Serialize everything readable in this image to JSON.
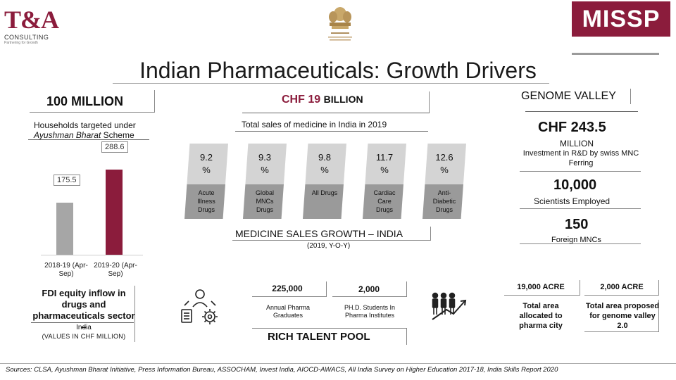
{
  "logos": {
    "ta_main": "T&A",
    "ta_sub": "CONSULTING",
    "ta_tag": "Partnering for Growth",
    "missp": "MISSP"
  },
  "title": "Indian Pharmaceuticals: Growth Drivers",
  "households": {
    "headline": "100 MILLION",
    "sub_line1": "Households targeted under",
    "sub_italic": "Ayushman Bharat",
    "sub_rest": " Scheme"
  },
  "sales": {
    "headline_main": "CHF 19 ",
    "headline_small": "BILLION",
    "sub": "Total sales of medicine in India in 2019"
  },
  "chart_data": {
    "type": "bar",
    "categories": [
      "2018-19 (Apr-Sep)",
      "2019-20 (Apr-Sep)"
    ],
    "values": [
      175.5,
      288.6
    ],
    "value_labels": [
      "175.5",
      "288.6"
    ],
    "colors": [
      "#a6a6a6",
      "#8b1c3c"
    ],
    "ylim": [
      0,
      310
    ]
  },
  "growth": {
    "columns": [
      {
        "value": "9.2",
        "unit": "%",
        "label": "Acute Illness Drugs"
      },
      {
        "value": "9.3",
        "unit": "%",
        "label": "Global MNCs Drugs"
      },
      {
        "value": "9.8",
        "unit": "%",
        "label": "All Drugs"
      },
      {
        "value": "11.7",
        "unit": "%",
        "label": "Cardiac Care Drugs"
      },
      {
        "value": "12.6",
        "unit": "%",
        "label": "Anti-Diabetic Drugs"
      }
    ],
    "title": "MEDICINE SALES GROWTH – INDIA",
    "subtitle": "(2019, Y-O-Y)"
  },
  "genome": {
    "title": "GENOME VALLEY",
    "chf": "CHF 243.5",
    "million": "MILLION",
    "investment": "Investment in R&D by swiss MNC Ferring",
    "scientists_num": "10,000",
    "scientists_label": "Scientists Employed",
    "mncs_num": "150",
    "mncs_label": "Foreign MNCs"
  },
  "fdi": {
    "title": "FDI equity inflow in drugs and pharmaceuticals sector –",
    "sub1": "India",
    "sub2": "(VALUES IN CHF MILLION)"
  },
  "talent": {
    "grads_num": "225,000",
    "grads_label": "Annual Pharma Graduates",
    "phd_num": "2,000",
    "phd_label": "PH.D. Students In Pharma Institutes",
    "title": "RICH TALENT POOL"
  },
  "acres": {
    "a_num": "19,000 ACRE",
    "a_label": "Total area allocated to pharma city",
    "b_num": "2,000 ACRE",
    "b_label": "Total area proposed for genome valley 2.0"
  },
  "sources": "Sources: CLSA, Ayushman Bharat Initiative, Press Information Bureau, ASSOCHAM, Invest India, AIOCD-AWACS, All India Survey on Higher Education 2017-18, India Skills Report 2020"
}
